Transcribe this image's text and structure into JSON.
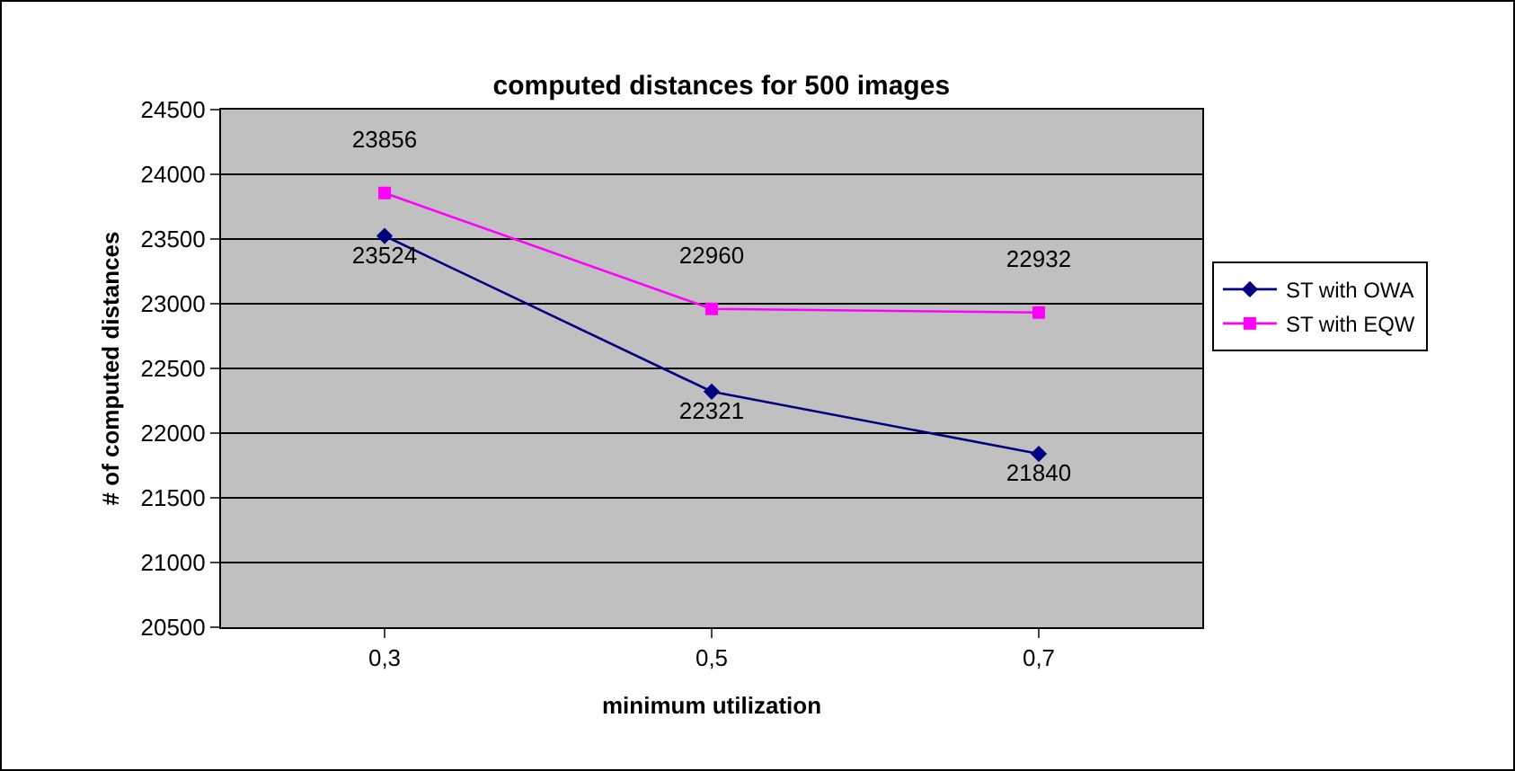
{
  "chart_data": {
    "type": "line",
    "title": "computed distances for 500 images",
    "xlabel": "minimum utilization",
    "ylabel": "# of computed distances",
    "categories": [
      "0,3",
      "0,5",
      "0,7"
    ],
    "series": [
      {
        "name": "ST with OWA",
        "color": "#000080",
        "marker": "diamond",
        "values": [
          23524,
          22321,
          21840
        ]
      },
      {
        "name": "ST with EQW",
        "color": "#ff00ff",
        "marker": "square",
        "values": [
          23856,
          22960,
          22932
        ]
      }
    ],
    "ylim": [
      20500,
      24500
    ],
    "yticks": [
      20500,
      21000,
      21500,
      22000,
      22500,
      23000,
      23500,
      24000,
      24500
    ],
    "grid": "y",
    "legend": "right",
    "data_labels": true
  }
}
